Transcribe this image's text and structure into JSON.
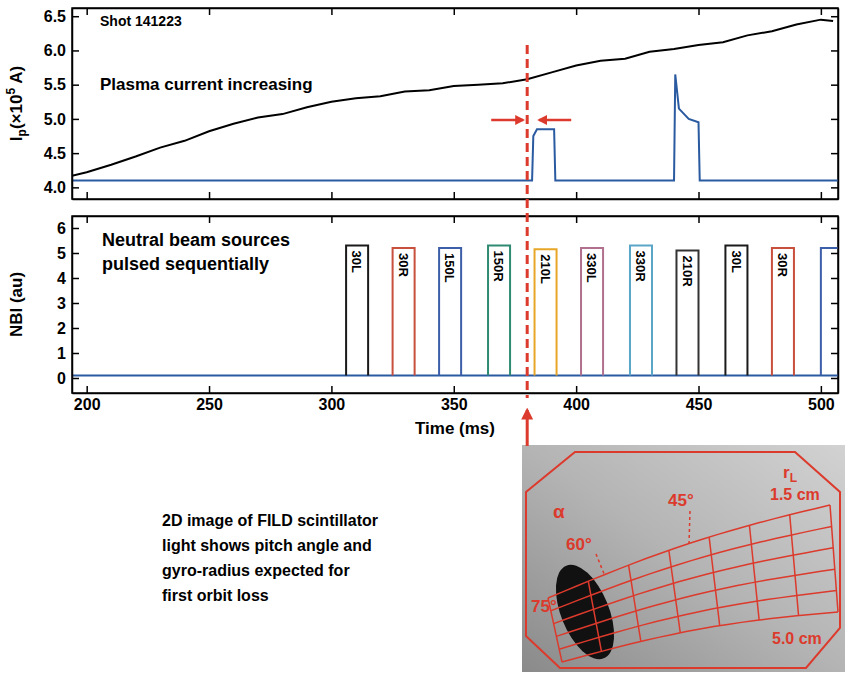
{
  "chart_data": [
    {
      "type": "line",
      "xlim": [
        194,
        507
      ],
      "xticks": [
        200,
        250,
        300,
        350,
        400,
        450,
        500
      ],
      "ylim": [
        3.83,
        6.62
      ],
      "yticks": [
        {
          "value": 4,
          "label": "4.0"
        },
        4.5,
        {
          "value": 5,
          "label": "5.0"
        },
        5.5,
        {
          "value": 6,
          "label": "6.0"
        },
        6.5
      ],
      "tick_labels": "y",
      "y_label": {
        "base": "I",
        "sub": "p",
        "mid": "(×10",
        "sup": "5",
        "end": " A)"
      },
      "annotations": [
        "Shot 141223",
        "Plasma current increasing"
      ],
      "series": [
        {
          "color": "#000000",
          "x": [
            194,
            200,
            210,
            220,
            230,
            240,
            250,
            260,
            270,
            280,
            290,
            300,
            310,
            320,
            330,
            340,
            350,
            360,
            370,
            380,
            390,
            400,
            410,
            420,
            430,
            440,
            450,
            460,
            470,
            480,
            490,
            500,
            505
          ],
          "values": [
            4.17,
            4.22,
            4.33,
            4.45,
            4.58,
            4.68,
            4.82,
            4.93,
            5.02,
            5.07,
            5.17,
            5.25,
            5.3,
            5.33,
            5.4,
            5.42,
            5.48,
            5.5,
            5.52,
            5.58,
            5.68,
            5.78,
            5.85,
            5.88,
            5.98,
            6.02,
            6.08,
            6.12,
            6.22,
            6.28,
            6.38,
            6.45,
            6.43
          ]
        },
        {
          "color": "#2a5aa0",
          "x": [
            194,
            382,
            382.5,
            384,
            391,
            391.5,
            440,
            440.5,
            442,
            446,
            450,
            450.5,
            507
          ],
          "values": [
            4.1,
            4.1,
            4.75,
            4.85,
            4.85,
            4.1,
            4.1,
            5.65,
            5.15,
            5.0,
            4.95,
            4.1,
            4.1
          ]
        }
      ]
    },
    {
      "type": "line",
      "xlim": [
        194,
        507
      ],
      "xticks": [
        200,
        250,
        300,
        350,
        400,
        450,
        500
      ],
      "ylim": [
        -0.6,
        6.48
      ],
      "yticks": [
        0,
        1,
        2,
        3,
        4,
        5,
        6
      ],
      "x_label": "Time (ms)",
      "y_label": "NBI (au)",
      "annotations": [
        "Neutral beam sources",
        "pulsed sequentially"
      ],
      "marker_time": 380,
      "series": [
        {
          "color": "#2a5aa0",
          "x": [
            194,
            507
          ],
          "values": [
            0.1,
            0.1
          ]
        },
        {
          "name": "30L",
          "color": "#1a1a1a",
          "x": [
            306,
            306,
            315,
            315
          ],
          "values": [
            0.1,
            5.3,
            5.3,
            0.1
          ]
        },
        {
          "name": "30R",
          "color": "#c8503c",
          "x": [
            325,
            325,
            334,
            334
          ],
          "values": [
            0.1,
            5.2,
            5.2,
            0.1
          ]
        },
        {
          "name": "150L",
          "color": "#3d5ea8",
          "x": [
            344,
            344,
            353,
            353
          ],
          "values": [
            0.1,
            5.2,
            5.2,
            0.1
          ]
        },
        {
          "name": "150R",
          "color": "#2e8b72",
          "x": [
            364,
            364,
            373,
            373
          ],
          "values": [
            0.1,
            5.3,
            5.3,
            0.1
          ]
        },
        {
          "name": "210L",
          "color": "#e8a628",
          "x": [
            383,
            383,
            392,
            392
          ],
          "values": [
            0.1,
            5.15,
            5.15,
            0.1
          ]
        },
        {
          "name": "330L",
          "color": "#b0708e",
          "x": [
            402,
            402,
            411,
            411
          ],
          "values": [
            0.1,
            5.2,
            5.2,
            0.1
          ]
        },
        {
          "name": "330R",
          "color": "#5aa6c8",
          "x": [
            422,
            422,
            431,
            431
          ],
          "values": [
            0.1,
            5.3,
            5.3,
            0.1
          ]
        },
        {
          "name": "210R",
          "color": "#333333",
          "x": [
            441,
            441,
            450,
            450
          ],
          "values": [
            0.1,
            5.1,
            5.1,
            0.1
          ]
        },
        {
          "name": "30L",
          "color": "#1a1a1a",
          "x": [
            461,
            461,
            470,
            470
          ],
          "values": [
            0.1,
            5.3,
            5.3,
            0.1
          ]
        },
        {
          "name": "30R",
          "color": "#c8503c",
          "x": [
            480,
            480,
            489,
            489
          ],
          "values": [
            0.1,
            5.2,
            5.2,
            0.1
          ]
        },
        {
          "color": "#3d5ea8",
          "x": [
            500,
            500,
            509,
            509
          ],
          "values": [
            0.1,
            5.2,
            5.2,
            0.1
          ]
        }
      ]
    },
    {
      "type": "image",
      "caption": [
        "2D image of FILD scintillator",
        "light shows pitch angle and",
        "gyro-radius expected for",
        "first orbit loss"
      ],
      "labels": {
        "alpha": "α",
        "pitch": [
          "75°",
          "60°",
          "45°"
        ],
        "r_symbol": "r",
        "r_subscript": "L",
        "r_min": "1.5 cm",
        "r_max": "5.0 cm"
      }
    }
  ]
}
